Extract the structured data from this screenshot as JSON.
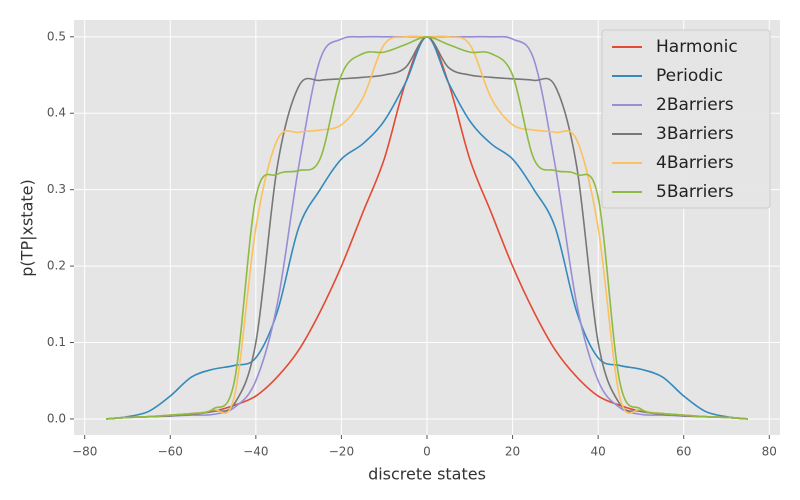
{
  "chart_data": {
    "type": "line",
    "xlabel": "discrete states",
    "ylabel": "p(TP|xstate)",
    "x": [
      -75,
      -70,
      -65,
      -60,
      -55,
      -50,
      -45,
      -40,
      -35,
      -30,
      -25,
      -20,
      -15,
      -10,
      -5,
      0,
      5,
      10,
      15,
      20,
      25,
      30,
      35,
      40,
      45,
      50,
      55,
      60,
      65,
      70,
      75
    ],
    "series": [
      {
        "name": "Harmonic",
        "color": "#E24A33",
        "values": [
          0,
          0.002,
          0.003,
          0.005,
          0.007,
          0.01,
          0.018,
          0.03,
          0.055,
          0.09,
          0.14,
          0.2,
          0.27,
          0.34,
          0.44,
          0.5,
          0.44,
          0.34,
          0.27,
          0.2,
          0.14,
          0.09,
          0.055,
          0.03,
          0.018,
          0.01,
          0.007,
          0.005,
          0.003,
          0.002,
          0
        ]
      },
      {
        "name": "Periodic",
        "color": "#348ABD",
        "values": [
          0,
          0.003,
          0.01,
          0.03,
          0.055,
          0.065,
          0.07,
          0.08,
          0.14,
          0.25,
          0.3,
          0.34,
          0.36,
          0.39,
          0.44,
          0.5,
          0.44,
          0.39,
          0.36,
          0.34,
          0.3,
          0.25,
          0.14,
          0.08,
          0.07,
          0.065,
          0.055,
          0.03,
          0.01,
          0.003,
          0
        ]
      },
      {
        "name": "2Barriers",
        "color": "#988ED5",
        "values": [
          0,
          0.002,
          0.003,
          0.004,
          0.005,
          0.006,
          0.015,
          0.05,
          0.15,
          0.33,
          0.47,
          0.497,
          0.5,
          0.5,
          0.5,
          0.5,
          0.5,
          0.5,
          0.5,
          0.497,
          0.47,
          0.33,
          0.15,
          0.05,
          0.015,
          0.006,
          0.005,
          0.004,
          0.003,
          0.002,
          0
        ]
      },
      {
        "name": "3Barriers",
        "color": "#777777",
        "values": [
          0,
          0.002,
          0.003,
          0.004,
          0.006,
          0.01,
          0.02,
          0.1,
          0.33,
          0.435,
          0.443,
          0.445,
          0.447,
          0.45,
          0.46,
          0.5,
          0.46,
          0.45,
          0.447,
          0.445,
          0.443,
          0.435,
          0.33,
          0.1,
          0.02,
          0.01,
          0.006,
          0.004,
          0.003,
          0.002,
          0
        ]
      },
      {
        "name": "4Barriers",
        "color": "#FBC15E",
        "values": [
          0,
          0.002,
          0.003,
          0.005,
          0.007,
          0.012,
          0.03,
          0.25,
          0.365,
          0.375,
          0.378,
          0.385,
          0.42,
          0.49,
          0.5,
          0.5,
          0.5,
          0.49,
          0.42,
          0.385,
          0.378,
          0.375,
          0.365,
          0.25,
          0.03,
          0.012,
          0.007,
          0.005,
          0.003,
          0.002,
          0
        ]
      },
      {
        "name": "5Barriers",
        "color": "#8EBA42",
        "values": [
          0,
          0.002,
          0.003,
          0.005,
          0.007,
          0.013,
          0.05,
          0.29,
          0.32,
          0.325,
          0.34,
          0.45,
          0.478,
          0.48,
          0.49,
          0.5,
          0.49,
          0.48,
          0.478,
          0.45,
          0.34,
          0.325,
          0.32,
          0.29,
          0.05,
          0.013,
          0.007,
          0.005,
          0.003,
          0.002,
          0
        ]
      }
    ],
    "xlim": [
      -82.5,
      82.5
    ],
    "xticks": [
      {
        "value": -80,
        "label": "−80"
      },
      {
        "value": -60,
        "label": "−60"
      },
      {
        "value": -40,
        "label": "−40"
      },
      {
        "value": -20,
        "label": "−20"
      },
      0,
      20,
      40,
      60,
      80
    ],
    "ylim": [
      -0.021,
      0.522
    ],
    "yticks": [
      {
        "value": 0,
        "label": "0.0"
      },
      0.1,
      0.2,
      0.3,
      0.4,
      0.5
    ],
    "grid": true,
    "legend": "upper right"
  }
}
